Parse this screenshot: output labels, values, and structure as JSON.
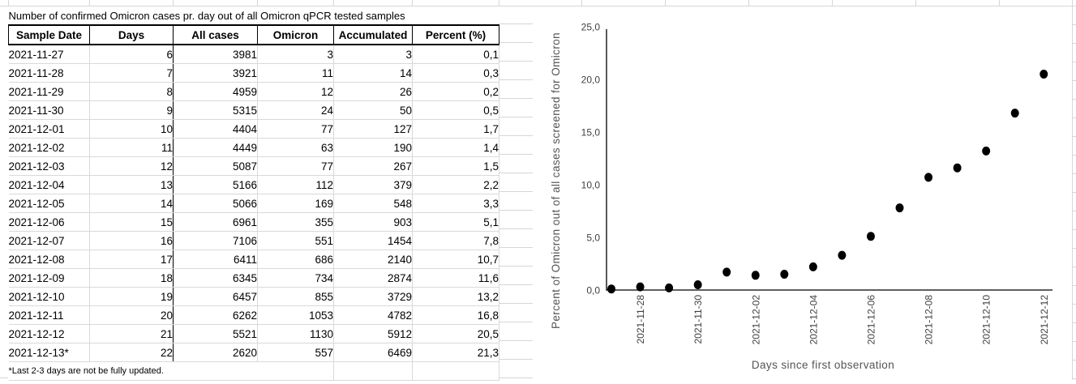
{
  "sheet": {
    "title": "Number of confirmed Omicron cases pr. day out of all Omicron qPCR tested samples",
    "columns": [
      "Sample Date",
      "Days",
      "All cases",
      "Omicron",
      "Accumulated",
      "Percent (%)"
    ],
    "rows": [
      [
        "2021-11-27",
        "6",
        "3981",
        "3",
        "3",
        "0,1"
      ],
      [
        "2021-11-28",
        "7",
        "3921",
        "11",
        "14",
        "0,3"
      ],
      [
        "2021-11-29",
        "8",
        "4959",
        "12",
        "26",
        "0,2"
      ],
      [
        "2021-11-30",
        "9",
        "5315",
        "24",
        "50",
        "0,5"
      ],
      [
        "2021-12-01",
        "10",
        "4404",
        "77",
        "127",
        "1,7"
      ],
      [
        "2021-12-02",
        "11",
        "4449",
        "63",
        "190",
        "1,4"
      ],
      [
        "2021-12-03",
        "12",
        "5087",
        "77",
        "267",
        "1,5"
      ],
      [
        "2021-12-04",
        "13",
        "5166",
        "112",
        "379",
        "2,2"
      ],
      [
        "2021-12-05",
        "14",
        "5066",
        "169",
        "548",
        "3,3"
      ],
      [
        "2021-12-06",
        "15",
        "6961",
        "355",
        "903",
        "5,1"
      ],
      [
        "2021-12-07",
        "16",
        "7106",
        "551",
        "1454",
        "7,8"
      ],
      [
        "2021-12-08",
        "17",
        "6411",
        "686",
        "2140",
        "10,7"
      ],
      [
        "2021-12-09",
        "18",
        "6345",
        "734",
        "2874",
        "11,6"
      ],
      [
        "2021-12-10",
        "19",
        "6457",
        "855",
        "3729",
        "13,2"
      ],
      [
        "2021-12-11",
        "20",
        "6262",
        "1053",
        "4782",
        "16,8"
      ],
      [
        "2021-12-12",
        "21",
        "5521",
        "1130",
        "5912",
        "20,5"
      ],
      [
        "2021-12-13*",
        "22",
        "2620",
        "557",
        "6469",
        "21,3"
      ]
    ],
    "footnote": "*Last 2-3 days are not be fully updated."
  },
  "chart_data": {
    "type": "scatter",
    "title": "",
    "xlabel": "Days since first observation",
    "ylabel": "Percent of Omicron out of all cases screened for Omicron",
    "x": [
      "2021-11-27",
      "2021-11-28",
      "2021-11-29",
      "2021-11-30",
      "2021-12-01",
      "2021-12-02",
      "2021-12-03",
      "2021-12-04",
      "2021-12-05",
      "2021-12-06",
      "2021-12-07",
      "2021-12-08",
      "2021-12-09",
      "2021-12-10",
      "2021-12-11",
      "2021-12-12"
    ],
    "y": [
      0.1,
      0.3,
      0.2,
      0.5,
      1.7,
      1.4,
      1.5,
      2.2,
      3.3,
      5.1,
      7.8,
      10.7,
      11.6,
      13.2,
      16.8,
      20.5
    ],
    "x_tick_labels": [
      "2021-11-28",
      "2021-11-30",
      "2021-12-02",
      "2021-12-04",
      "2021-12-06",
      "2021-12-08",
      "2021-12-10",
      "2021-12-12"
    ],
    "y_tick_labels": [
      "0,0",
      "5,0",
      "10,0",
      "15,0",
      "20,0",
      "25,0"
    ],
    "ylim": [
      0,
      25
    ],
    "grid": false,
    "legend": "none",
    "point_color": "#000000",
    "axis_color": "#000000"
  }
}
